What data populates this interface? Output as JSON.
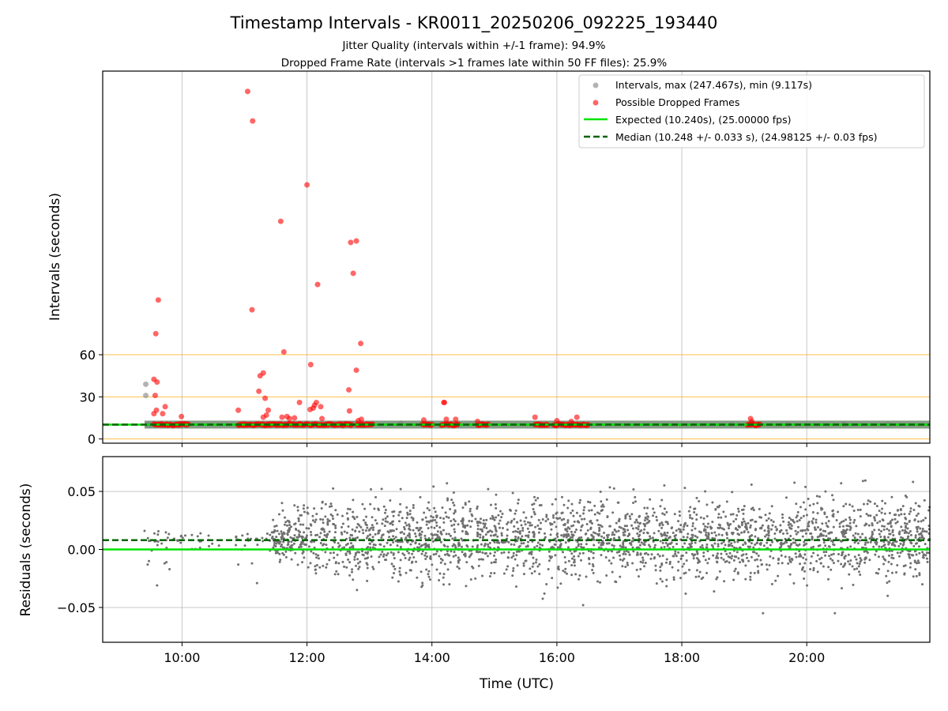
{
  "chart_data": [
    {
      "type": "scatter",
      "title": "Timestamp Intervals - KR0011_20250206_092225_193440",
      "subtitle_lines": [
        "Jitter Quality (intervals within +/-1 frame): 94.9%",
        "Dropped Frame Rate (intervals >1 frames late within 50 FF files): 25.9%"
      ],
      "xlabel": "",
      "ylabel": "Intervals (seconds)",
      "xlim": [
        8.73,
        21.97
      ],
      "ylim": [
        -3,
        262
      ],
      "x_tick_values": [
        10,
        12,
        14,
        16,
        18,
        20
      ],
      "y_tick_values": [
        0,
        30,
        60
      ],
      "y_tick_labels": [
        "0",
        "30",
        "60"
      ],
      "grid": true,
      "reference_lines": [
        {
          "y": 0,
          "color": "#ffa500"
        },
        {
          "y": 30,
          "color": "#ffa500"
        },
        {
          "y": 60,
          "color": "#ffa500"
        }
      ],
      "legend_position": "top-right",
      "legend": [
        {
          "label": "Intervals, max (247.467s), min (9.117s)",
          "kind": "marker",
          "color": "#808080"
        },
        {
          "label": "Possible Dropped Frames",
          "kind": "marker",
          "color": "#ff0000"
        },
        {
          "label": "Expected (10.240s), (25.00000 fps)",
          "kind": "line",
          "color": "#00e400"
        },
        {
          "label": "Median (10.248 +/- 0.033 s), (24.98125 +/- 0.03 fps)",
          "kind": "dashed",
          "color": "#006400"
        }
      ],
      "expected_interval": 10.24,
      "median_interval": 10.248,
      "normal_band": {
        "x_range": [
          9.4,
          21.97
        ],
        "y": 10.24
      },
      "normal_intervals": {
        "x": [
          9.42,
          9.42,
          9.45,
          9.5,
          13.5,
          18.8,
          19.7,
          20.6,
          21.3
        ],
        "y": [
          39,
          31,
          10.2,
          10.2,
          11.2,
          10.5,
          10.6,
          10.5,
          10.4
        ]
      },
      "dropped_frames": {
        "x": [
          11.05,
          11.13,
          12.0,
          11.58,
          12.7,
          12.79,
          12.74,
          9.62,
          12.17,
          11.12,
          9.58,
          12.86,
          11.63,
          12.06,
          12.79,
          9.55,
          9.6,
          11.3,
          12.67,
          11.25,
          11.23,
          11.33,
          9.57,
          12.12,
          11.88,
          12.15,
          12.1,
          12.22,
          9.59,
          9.73,
          9.55,
          10.9,
          11.38,
          12.05,
          12.68,
          11.35,
          11.3,
          9.69,
          9.99,
          11.6,
          11.8,
          11.72,
          11.68,
          12.24,
          12.87,
          12.82,
          14.19,
          14.2,
          14.23,
          14.38,
          13.87,
          14.73,
          15.65,
          16.32,
          16.0,
          16.23,
          19.1,
          19.12
        ],
        "y": [
          247.5,
          226.5,
          181,
          155,
          140,
          141,
          118,
          99,
          110,
          92,
          75,
          68,
          62,
          53,
          49,
          42.5,
          40.5,
          47,
          35,
          45,
          34,
          29,
          31,
          24,
          26,
          26,
          22,
          23,
          20.5,
          23,
          18,
          20.5,
          20.5,
          21,
          20,
          17,
          15.5,
          18,
          16,
          15.5,
          15,
          14.5,
          16,
          14.5,
          14,
          13,
          26,
          26,
          14,
          14,
          13.5,
          12.5,
          15.5,
          15.5,
          13,
          12.5,
          14.5,
          12.5
        ],
        "dense_runs": [
          [
            9.55,
            10.1
          ],
          [
            10.9,
            12.35
          ],
          [
            12.35,
            12.72
          ],
          [
            12.8,
            13.05
          ],
          [
            13.85,
            14.0
          ],
          [
            14.15,
            14.42
          ],
          [
            14.73,
            14.9
          ],
          [
            15.65,
            15.85
          ],
          [
            15.95,
            16.5
          ],
          [
            19.05,
            19.25
          ]
        ]
      }
    },
    {
      "type": "scatter",
      "title": "",
      "xlabel": "Time (UTC)",
      "ylabel": "Residuals (seconds)",
      "xlim": [
        8.73,
        21.97
      ],
      "ylim": [
        -0.08,
        0.08
      ],
      "x_tick_values": [
        10,
        12,
        14,
        16,
        18,
        20
      ],
      "x_tick_labels": [
        "10:00",
        "12:00",
        "14:00",
        "16:00",
        "18:00",
        "20:00"
      ],
      "y_tick_values": [
        0.05,
        0.0,
        -0.05
      ],
      "y_tick_labels": [
        "0.05",
        "0.00",
        "−0.05"
      ],
      "grid": true,
      "expected_line": {
        "y": 0.0,
        "color": "#00e400"
      },
      "median_line": {
        "y": 0.008,
        "color": "#006400"
      },
      "residuals": {
        "series_color": "#707070",
        "sparse_region": {
          "x_range": [
            9.4,
            11.45
          ],
          "center": 0.008,
          "spread": 0.004
        },
        "dense_region": {
          "x_range": [
            11.45,
            21.97
          ],
          "center": 0.01,
          "spread": 0.022
        },
        "points": {
          "x": [
            9.4,
            9.45,
            9.47,
            9.6,
            9.75,
            9.8,
            9.72,
            10.9,
            11.12,
            11.2,
            11.6,
            11.8,
            11.95,
            12.25,
            12.3,
            12.8,
            13.1,
            13.5,
            13.85,
            14.28,
            14.35,
            14.9,
            15.35,
            15.8,
            16.42,
            16.5,
            17.25,
            19.3,
            19.5,
            20.3,
            20.45,
            20.55,
            20.9,
            21.6,
            21.85
          ],
          "y": [
            0.016,
            -0.013,
            -0.01,
            -0.031,
            -0.011,
            -0.017,
            -0.012,
            -0.013,
            -0.012,
            -0.029,
            0.04,
            0.038,
            0.038,
            0.041,
            0.039,
            -0.035,
            0.045,
            0.052,
            -0.031,
            -0.03,
            0.049,
            0.052,
            -0.032,
            -0.038,
            -0.048,
            0.041,
            0.045,
            -0.055,
            -0.027,
            0.05,
            -0.055,
            0.057,
            0.059,
            0.045,
            -0.03
          ]
        }
      }
    }
  ]
}
